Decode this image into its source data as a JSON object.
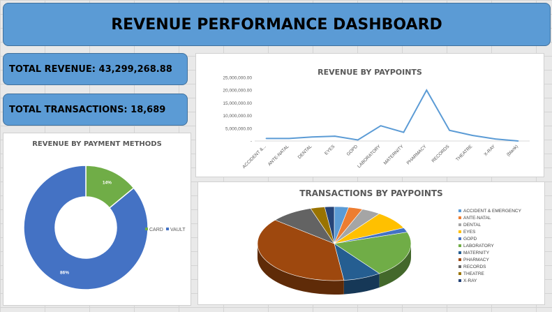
{
  "dashboard": {
    "title": "REVENUE PERFORMANCE DASHBOARD"
  },
  "kpis": {
    "total_revenue": "TOTAL REVENUE: 43,299,268.88",
    "total_transactions": "TOTAL TRANSACTIONS: 18,689"
  },
  "colors": {
    "accent": "#5b9bd5",
    "line": "#5b9bd5"
  },
  "chart_data": [
    {
      "type": "line",
      "title": "REVENUE  BY PAYPOINTS",
      "categories": [
        "ACCIDENT &...",
        "ANTE-NATAL",
        "DENTAL",
        "EYES",
        "GOPD",
        "LABORATORY",
        "MATERNITY",
        "PHARMACY",
        "RECORDS",
        "THEATRE",
        "X-RAY",
        "(blank)"
      ],
      "values": [
        1000000,
        1000000,
        1600000,
        1900000,
        400000,
        6000000,
        3400000,
        20000000,
        4200000,
        2200000,
        800000,
        0
      ],
      "yticks": [
        "-",
        "5,000,000.00",
        "10,000,000.00",
        "15,000,000.00",
        "20,000,000.00",
        "25,000,000.00"
      ],
      "ylim": [
        0,
        25000000
      ],
      "grid": false
    },
    {
      "type": "pie",
      "title": "REVENUE BY PAYMENT METHODS",
      "labels": [
        "CARD",
        "VAULT"
      ],
      "values": [
        14,
        86
      ],
      "data_labels": [
        "14%",
        "86%"
      ],
      "colors": [
        "#70ad47",
        "#4472c4"
      ],
      "legend": "right"
    },
    {
      "type": "pie",
      "title": "TRANSACTIONS BY PAYPOINTS",
      "labels": [
        "ACCIDENT & EMERGENCY",
        "ANTE-NATAL",
        "DENTAL",
        "EYES",
        "GOPD",
        "LABORATORY",
        "MATERNITY",
        "PHARMACY",
        "RECORDS",
        "THEATRE",
        "X-RAY"
      ],
      "values": [
        3,
        3,
        4,
        8,
        2,
        20,
        8,
        38,
        9,
        3,
        2
      ],
      "colors": [
        "#5b9bd5",
        "#ed7d31",
        "#a5a5a5",
        "#ffc000",
        "#4472c4",
        "#70ad47",
        "#255e91",
        "#9e480e",
        "#636363",
        "#997300",
        "#264478"
      ],
      "legend": "right"
    }
  ]
}
